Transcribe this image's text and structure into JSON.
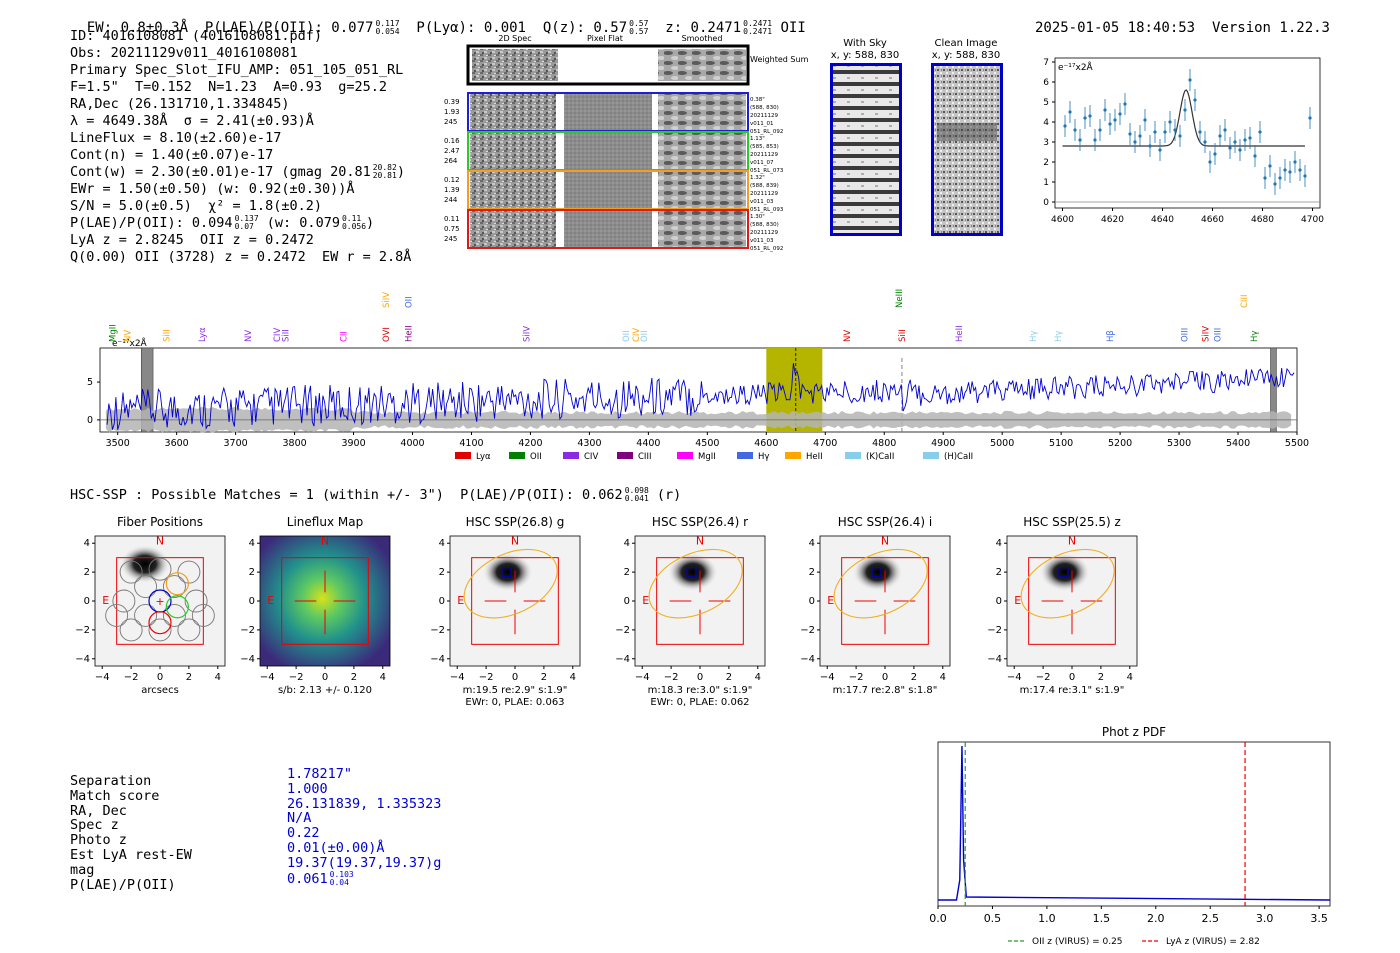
{
  "header": {
    "ew": "EW: 0.8±0.3Å",
    "plae_label": "P(LAE)/P(OII): 0.077",
    "plae_hi": "0.117",
    "plae_lo": "0.054",
    "plya": "P(Lyα): 0.001",
    "qz_label": "Q(z): 0.57",
    "qz_hi": "0.57",
    "qz_lo": "0.57",
    "z_label": "z: 0.2471",
    "z_hi": "0.2471",
    "z_lo": "0.2471",
    "z_line": "OII",
    "timestamp": "2025-01-05 18:40:53",
    "version": "Version 1.22.3"
  },
  "info": {
    "id": "ID: 4016108081 (4016108081.pdf)",
    "obs": "Obs: 20211129v011_4016108081",
    "primary": "Primary Spec_Slot_IFU_AMP: 051_105_051_RL",
    "fparams": "F=1.5\"  T=0.152  N=1.23  A=0.93  g=25.2",
    "radec": "RA,Dec (26.131710,1.334845)",
    "lambda": "λ = 4649.38Å  σ = 2.41(±0.93)Å",
    "lineflux": "LineFlux = 8.10(±2.60)e-17",
    "contn": "Cont(n) = 1.40(±0.07)e-17",
    "contw": "Cont(w) = 2.30(±0.01)e-17 (gmag 20.81",
    "contw_hi": "20.82",
    "contw_lo": "20.81",
    "ewr": "EWr = 1.50(±0.50) (w: 0.92(±0.30))Å",
    "sn": "S/N = 5.0(±0.5)  χ² = 1.8(±0.2)",
    "plae": "P(LAE)/P(OII): 0.094",
    "plae_hi": "0.137",
    "plae_lo": "0.07",
    "plae_w": "(w: 0.079",
    "plae_w_hi": "0.11",
    "plae_w_lo": "0.056",
    "lya": "LyA z = 2.8245  OII z = 0.2472",
    "q": "Q(0.00) OII (3728) z = 0.2472  EW r = 2.8Å"
  },
  "cutouts": {
    "col_titles": [
      "2D Spec",
      "Pixel Flat",
      "Smoothed"
    ],
    "weighted": "Weighted Sum",
    "rows": [
      {
        "left": [
          "0.39",
          "1.93",
          "245"
        ],
        "right": [
          "0.38\"",
          "(588, 830)",
          "20211129",
          "v011_01",
          "051_RL_092"
        ],
        "color": "#1f1fd0"
      },
      {
        "left": [
          "0.16",
          "2.47",
          "264"
        ],
        "right": [
          "1.13\"",
          "(585, 853)",
          "20211129",
          "v011_07",
          "051_RL_073"
        ],
        "color": "#2cc82c"
      },
      {
        "left": [
          "0.12",
          "1.39",
          "244"
        ],
        "right": [
          "1.32\"",
          "(588, 839)",
          "20211129",
          "v011_03",
          "051_RL_093"
        ],
        "color": "#f0a020"
      },
      {
        "left": [
          "0.11",
          "0.75",
          "245"
        ],
        "right": [
          "1.30\"",
          "(588, 830)",
          "20211129",
          "v011_03",
          "051_RL_092"
        ],
        "color": "#e01818"
      }
    ],
    "with_sky": "With Sky",
    "with_sky_xy": "x, y: 588, 830",
    "clean": "Clean Image",
    "clean_xy": "x, y: 588, 830"
  },
  "zoom_chart": {
    "type": "scatter",
    "unit_label": "e⁻¹⁷x2Å",
    "xlim": [
      4597,
      4703
    ],
    "ylim": [
      -0.3,
      7.2
    ],
    "xticks": [
      4600,
      4620,
      4640,
      4660,
      4680,
      4700
    ],
    "yticks": [
      0,
      1,
      2,
      3,
      4,
      5,
      6,
      7
    ],
    "x": [
      4601,
      4603,
      4605,
      4607,
      4609,
      4611,
      4613,
      4615,
      4617,
      4619,
      4621,
      4623,
      4625,
      4627,
      4629,
      4631,
      4633,
      4635,
      4637,
      4639,
      4641,
      4643,
      4645,
      4647,
      4649,
      4651,
      4653,
      4655,
      4657,
      4659,
      4661,
      4663,
      4665,
      4667,
      4669,
      4671,
      4673,
      4675,
      4677,
      4679,
      4681,
      4683,
      4685,
      4687,
      4689,
      4691,
      4693,
      4695,
      4697,
      4699
    ],
    "y": [
      3.8,
      4.5,
      3.6,
      3.1,
      4.2,
      4.3,
      3.1,
      3.6,
      4.6,
      3.9,
      4.1,
      4.4,
      4.9,
      3.4,
      3.0,
      3.3,
      4.1,
      2.8,
      3.5,
      2.6,
      3.5,
      4.0,
      3.6,
      3.3,
      4.6,
      6.1,
      5.1,
      3.5,
      3.0,
      2.0,
      2.4,
      3.3,
      3.6,
      2.7,
      3.0,
      2.6,
      3.1,
      3.2,
      2.3,
      3.5,
      1.2,
      1.8,
      0.9,
      1.2,
      1.6,
      1.5,
      2.0,
      1.6,
      1.3,
      4.2
    ],
    "fit": {
      "continuum": 2.8,
      "peak": 5.6,
      "center": 4649.4,
      "sigma": 2.41
    }
  },
  "full_spectrum": {
    "type": "line",
    "unit_label": "e⁻¹⁷x2Å",
    "xlim": [
      3470,
      5500
    ],
    "ylim": [
      -1.6,
      9.5
    ],
    "xticks": [
      3500,
      3600,
      3700,
      3800,
      3900,
      4000,
      4100,
      4200,
      4300,
      4400,
      4500,
      4600,
      4700,
      4800,
      4900,
      5000,
      5100,
      5200,
      5300,
      5400,
      5500
    ],
    "yticks": [
      0,
      5
    ],
    "highlight": [
      4600,
      4695
    ],
    "line_center": 4650,
    "dashed_line": 4830,
    "masked": [
      [
        3540,
        3560
      ],
      [
        5455,
        5465
      ]
    ],
    "line_marks": [
      {
        "label": "MgII",
        "x": 3496,
        "color": "#008000"
      },
      {
        "label": "NV",
        "x": 3522,
        "color": "#ffa500"
      },
      {
        "label": "SiII",
        "x": 3588,
        "color": "#ffa500"
      },
      {
        "label": "Lyα",
        "x": 3648,
        "color": "#8a2be2"
      },
      {
        "label": "NV",
        "x": 3726,
        "color": "#8a2be2"
      },
      {
        "label": "CIV",
        "x": 3775,
        "color": "#8a2be2"
      },
      {
        "label": "SiII",
        "x": 3790,
        "color": "#8a2be2"
      },
      {
        "label": "CII",
        "x": 3888,
        "color": "#ff00ff"
      },
      {
        "label": "OVI",
        "x": 3960,
        "color": "#e00000"
      },
      {
        "label": "HeII",
        "x": 3998,
        "color": "#800080"
      },
      {
        "label": "SiIV",
        "x": 4198,
        "color": "#8a2be2"
      },
      {
        "label": "OII",
        "x": 4367,
        "color": "#87ceeb"
      },
      {
        "label": "CIV",
        "x": 4384,
        "color": "#ffa500"
      },
      {
        "label": "OII",
        "x": 4398,
        "color": "#87ceeb"
      },
      {
        "label": "NV",
        "x": 4742,
        "color": "#e00000"
      },
      {
        "label": "SiII",
        "x": 4835,
        "color": "#e00000"
      },
      {
        "label": "HeII",
        "x": 4932,
        "color": "#8a2be2"
      },
      {
        "label": "Hγ",
        "x": 5057,
        "color": "#87ceeb"
      },
      {
        "label": "Hγ",
        "x": 5100,
        "color": "#87ceeb"
      },
      {
        "label": "Hβ",
        "x": 5188,
        "color": "#4169e1"
      },
      {
        "label": "OIII",
        "x": 5314,
        "color": "#4169e1"
      },
      {
        "label": "SiIV",
        "x": 5350,
        "color": "#e00000"
      },
      {
        "label": "OIII",
        "x": 5370,
        "color": "#4169e1"
      },
      {
        "label": "Hγ",
        "x": 5432,
        "color": "#008000"
      }
    ],
    "upper_marks": [
      {
        "label": "SiIV",
        "x": 3960,
        "color": "#ffa500"
      },
      {
        "label": "OII",
        "x": 3998,
        "color": "#4169e1"
      },
      {
        "label": "NeIII",
        "x": 4830,
        "color": "#008000"
      },
      {
        "label": "CIII",
        "x": 5415,
        "color": "#ffa500"
      }
    ],
    "legend": [
      {
        "label": "Lyα",
        "color": "#e00000"
      },
      {
        "label": "OII",
        "color": "#008000"
      },
      {
        "label": "CIV",
        "color": "#8a2be2"
      },
      {
        "label": "CIII",
        "color": "#800080"
      },
      {
        "label": "MgII",
        "color": "#ff00ff"
      },
      {
        "label": "Hγ",
        "color": "#4169e1"
      },
      {
        "label": "HeII",
        "color": "#ffa500"
      },
      {
        "label": "(K)CaII",
        "color": "#87ceeb"
      },
      {
        "label": "(H)CaII",
        "color": "#87ceeb"
      }
    ]
  },
  "hsc": {
    "title": "HSC-SSP : Possible Matches = 1 (within +/- 3\")  P(LAE)/P(OII): 0.062",
    "title_hi": "0.098",
    "title_lo": "0.041",
    "title_band": "(r)",
    "panels": [
      {
        "title": "Fiber Positions",
        "xlabel": "arcsecs",
        "sub1": "",
        "sub2": ""
      },
      {
        "title": "Lineflux Map",
        "xlabel": "s/b: 2.13 +/- 0.120",
        "sub1": "",
        "sub2": ""
      },
      {
        "title": "HSC SSP(26.8) g",
        "xlabel": "m:19.5  re:2.9\"  s:1.9\"",
        "sub1": "EWr: 0, PLAE: 0.063",
        "sub2": ""
      },
      {
        "title": "HSC SSP(26.4) r",
        "xlabel": "m:18.3  re:3.0\"  s:1.9\"",
        "sub1": "EWr: 0, PLAE: 0.062",
        "sub2": ""
      },
      {
        "title": "HSC SSP(26.4) i",
        "xlabel": "m:17.7  re:2.8\"  s:1.8\"",
        "sub1": "",
        "sub2": ""
      },
      {
        "title": "HSC SSP(25.5) z",
        "xlabel": "m:17.4  re:3.1\"  s:1.9\"",
        "sub1": "",
        "sub2": ""
      }
    ],
    "ticks": [
      "-4",
      "-2",
      "0",
      "2",
      "4"
    ],
    "north": "N",
    "east": "E"
  },
  "match": {
    "labels": [
      "Separation",
      "Match score",
      "RA, Dec",
      "Spec z",
      "Photo z",
      "Est LyA rest-EW",
      "mag",
      "P(LAE)/P(OII)"
    ],
    "values": [
      "1.78217\"",
      "1.000",
      "26.131839, 1.335323",
      "N/A",
      "0.22",
      "0.01(±0.00)Å",
      "19.37(19.37,19.37)g",
      "0.061"
    ],
    "plae_hi": "0.103",
    "plae_lo": "0.04"
  },
  "photz_chart": {
    "type": "line",
    "title": "Phot z PDF",
    "xlim": [
      0.0,
      3.6
    ],
    "xticks": [
      "0.0",
      "0.5",
      "1.0",
      "1.5",
      "2.0",
      "2.5",
      "3.0",
      "3.5"
    ],
    "oii_z": 0.25,
    "lya_z": 2.82,
    "peak_z": 0.22,
    "legend_oii": "OII z (VIRUS) = 0.25",
    "legend_lya": "LyA z (VIRUS) = 2.82"
  }
}
